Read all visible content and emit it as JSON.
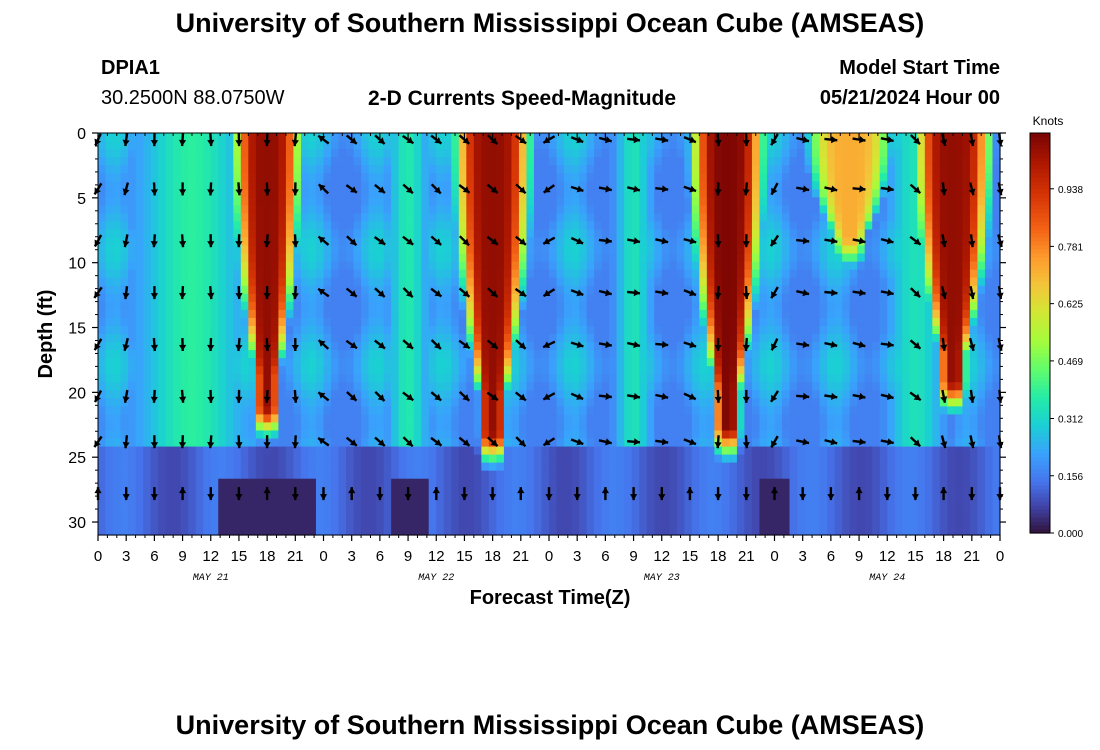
{
  "header": {
    "title": "University of Southern Mississippi Ocean Cube (AMSEAS)",
    "station_id": "DPIA1",
    "station_coords": "30.2500N  88.0750W",
    "chart_subtitle": "2-D Currents Speed-Magnitude",
    "model_start_label": "Model Start Time",
    "model_start_value": "05/21/2024 Hour 00"
  },
  "footer": {
    "title": "University of Southern Mississippi Ocean Cube (AMSEAS)"
  },
  "chart_data": {
    "type": "heatmap",
    "title": "2-D Currents Speed-Magnitude",
    "xlabel": "Forecast Time(Z)",
    "ylabel": "Depth (ft)",
    "colorbar_label": "Knots",
    "colorbar_ticks": [
      "0.000",
      "0.156",
      "0.312",
      "0.469",
      "0.625",
      "0.781",
      "0.938"
    ],
    "colorbar_range": [
      0,
      1.09
    ],
    "x_range_hours": [
      0,
      96
    ],
    "y_range_ft": [
      0,
      31
    ],
    "x_tick_labels": [
      "0",
      "3",
      "6",
      "9",
      "12",
      "15",
      "18",
      "21",
      "0",
      "3",
      "6",
      "9",
      "12",
      "15",
      "18",
      "21",
      "0",
      "3",
      "6",
      "9",
      "12",
      "15",
      "18",
      "21",
      "0",
      "3",
      "6",
      "9",
      "12",
      "15",
      "18",
      "21",
      "0"
    ],
    "y_tick_values": [
      0,
      5,
      10,
      15,
      20,
      25,
      30
    ],
    "y_tick_labels": [
      "0",
      "5",
      "10",
      "15",
      "20",
      "25",
      "30"
    ],
    "day_labels": [
      {
        "label": "MAY 21",
        "hour": 12
      },
      {
        "label": "MAY 22",
        "hour": 36
      },
      {
        "label": "MAY 23",
        "hour": 60
      },
      {
        "label": "MAY 24",
        "hour": 84
      }
    ],
    "high_speed_bands": [
      {
        "center_hour": 18,
        "half_width_hours": 3.5,
        "bottom_depth_ft": 21,
        "peak_knots": 1.05
      },
      {
        "center_hour": 42,
        "half_width_hours": 4.0,
        "bottom_depth_ft": 23,
        "peak_knots": 1.05
      },
      {
        "center_hour": 67,
        "half_width_hours": 3.8,
        "bottom_depth_ft": 22.5,
        "peak_knots": 1.08
      },
      {
        "center_hour": 80,
        "half_width_hours": 4.5,
        "bottom_depth_ft": 8,
        "peak_knots": 0.72
      },
      {
        "center_hour": 91,
        "half_width_hours": 4.0,
        "bottom_depth_ft": 19,
        "peak_knots": 1.05
      }
    ],
    "vector_rows_ft": [
      0.2,
      4,
      8,
      12,
      16,
      20,
      23.5,
      27.5
    ],
    "vector_times_hours": [
      0,
      3,
      6,
      9,
      12,
      15,
      18,
      21,
      24,
      27,
      30,
      33,
      36,
      39,
      42,
      45,
      48,
      51,
      54,
      57,
      60,
      63,
      66,
      69,
      72,
      75,
      78,
      81,
      84,
      87,
      90,
      93,
      96
    ],
    "vector_angles_by_column_deg": [
      120,
      100,
      90,
      90,
      90,
      90,
      90,
      90,
      220,
      40,
      40,
      40,
      40,
      40,
      40,
      40,
      150,
      20,
      10,
      10,
      10,
      20,
      90,
      90,
      120,
      10,
      10,
      10,
      10,
      40,
      80,
      80,
      80
    ]
  }
}
